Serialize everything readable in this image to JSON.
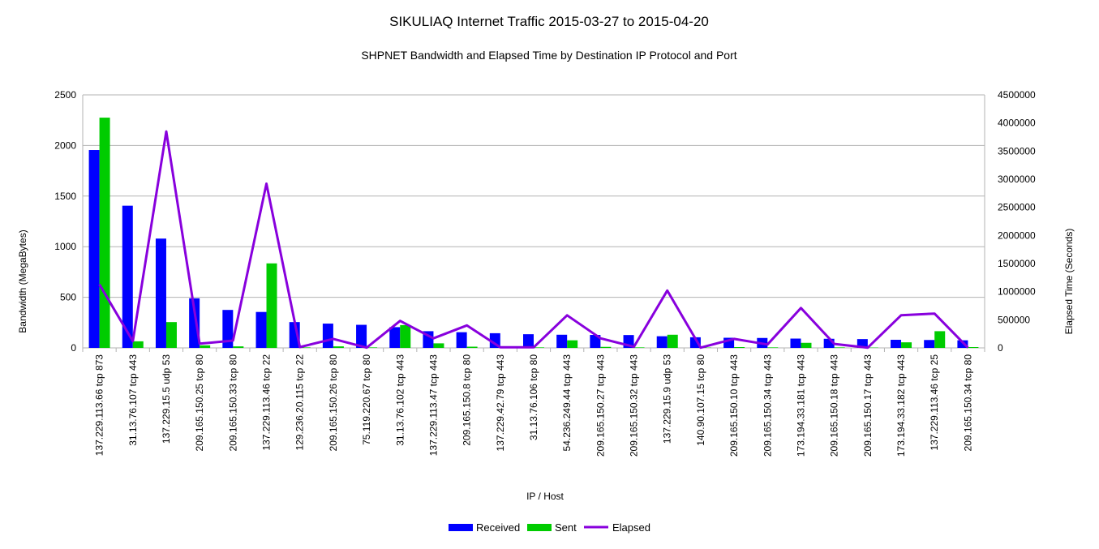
{
  "chart_data": {
    "type": "bar",
    "title": "SIKULIAQ Internet Traffic 2015-03-27 to 2015-04-20",
    "subtitle": "SHPNET Bandwidth and Elapsed Time by Destination IP Protocol and Port",
    "xlabel": "IP / Host",
    "ylabel": "Bandwidth (MegaBytes)",
    "y2label": "Elapsed Time (Seconds)",
    "ylim": [
      0,
      2500
    ],
    "y2lim": [
      0,
      4500000
    ],
    "yticks": [
      "0",
      "500",
      "1000",
      "1500",
      "2000",
      "2500"
    ],
    "y2ticks": [
      "0",
      "500000",
      "1000000",
      "1500000",
      "2000000",
      "2500000",
      "3000000",
      "3500000",
      "4000000",
      "4500000"
    ],
    "legend_position": "bottom",
    "categories": [
      "137.229.113.66 tcp 873",
      "31.13.76.107 tcp 443",
      "137.229.15.5 udp 53",
      "209.165.150.25 tcp 80",
      "209.165.150.33 tcp 80",
      "137.229.113.46 tcp 22",
      "129.236.20.115 tcp 22",
      "209.165.150.26 tcp 80",
      "75.119.220.67 tcp 80",
      "31.13.76.102 tcp 443",
      "137.229.113.47 tcp 443",
      "209.165.150.8 tcp 80",
      "137.229.42.79 tcp 443",
      "31.13.76.106 tcp 80",
      "54.236.249.44 tcp 443",
      "209.165.150.27 tcp 443",
      "209.165.150.32 tcp 443",
      "137.229.15.9 udp 53",
      "140.90.107.15 tcp 80",
      "209.165.150.10 tcp 443",
      "209.165.150.34 tcp 443",
      "173.194.33.181 tcp 443",
      "209.165.150.18 tcp 443",
      "209.165.150.17 tcp 443",
      "173.194.33.182 tcp 443",
      "137.229.113.46 tcp 25",
      "209.165.150.34 tcp 80"
    ],
    "series": [
      {
        "name": "Received",
        "kind": "bar",
        "axis": "left",
        "color": "#0000ff",
        "values": [
          1955,
          1405,
          1080,
          490,
          375,
          355,
          255,
          240,
          228,
          205,
          165,
          155,
          145,
          135,
          130,
          128,
          127,
          115,
          105,
          100,
          98,
          92,
          90,
          87,
          80,
          78,
          75
        ]
      },
      {
        "name": "Sent",
        "kind": "bar",
        "axis": "left",
        "color": "#00cc00",
        "values": [
          2275,
          65,
          255,
          25,
          15,
          835,
          5,
          15,
          5,
          225,
          45,
          12,
          3,
          5,
          75,
          10,
          5,
          130,
          3,
          8,
          5,
          50,
          5,
          3,
          55,
          165,
          8
        ]
      },
      {
        "name": "Elapsed",
        "kind": "line",
        "axis": "right",
        "color": "#8800dd",
        "values": [
          1130000,
          120000,
          3850000,
          75000,
          130000,
          2920000,
          15000,
          160000,
          5000,
          480000,
          170000,
          400000,
          10000,
          10000,
          580000,
          170000,
          20000,
          1020000,
          5000,
          160000,
          60000,
          710000,
          70000,
          5000,
          580000,
          610000,
          5000
        ]
      }
    ]
  }
}
